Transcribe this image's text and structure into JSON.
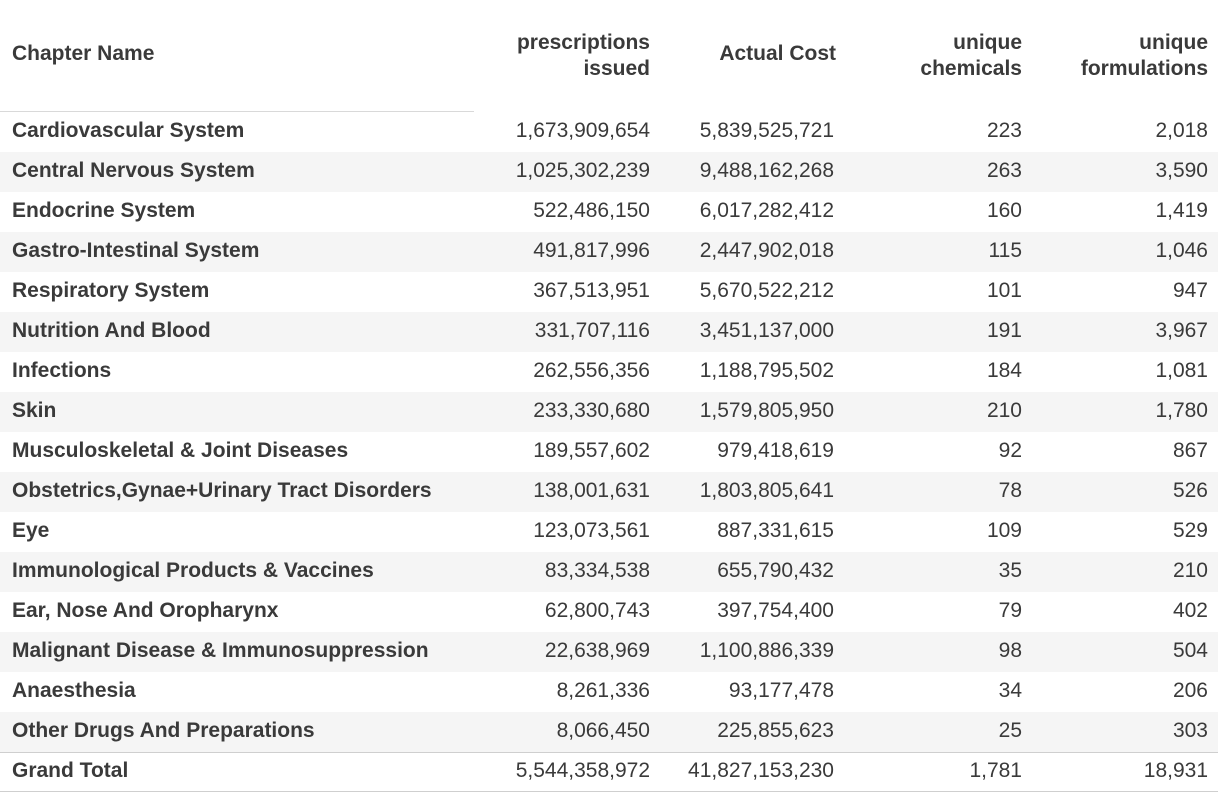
{
  "headers": {
    "chapter_name": "Chapter Name",
    "prescriptions_line1": "prescriptions",
    "prescriptions_line2": "issued",
    "actual_cost": "Actual Cost",
    "chemicals_line1": "unique",
    "chemicals_line2": "chemicals",
    "formulations_line1": "unique",
    "formulations_line2": "formulations"
  },
  "rows": [
    {
      "name": "Cardiovascular System",
      "prescriptions": "1,673,909,654",
      "cost": "5,839,525,721",
      "chemicals": "223",
      "formulations": "2,018"
    },
    {
      "name": "Central Nervous System",
      "prescriptions": "1,025,302,239",
      "cost": "9,488,162,268",
      "chemicals": "263",
      "formulations": "3,590"
    },
    {
      "name": "Endocrine System",
      "prescriptions": "522,486,150",
      "cost": "6,017,282,412",
      "chemicals": "160",
      "formulations": "1,419"
    },
    {
      "name": "Gastro-Intestinal System",
      "prescriptions": "491,817,996",
      "cost": "2,447,902,018",
      "chemicals": "115",
      "formulations": "1,046"
    },
    {
      "name": "Respiratory System",
      "prescriptions": "367,513,951",
      "cost": "5,670,522,212",
      "chemicals": "101",
      "formulations": "947"
    },
    {
      "name": "Nutrition And Blood",
      "prescriptions": "331,707,116",
      "cost": "3,451,137,000",
      "chemicals": "191",
      "formulations": "3,967"
    },
    {
      "name": "Infections",
      "prescriptions": "262,556,356",
      "cost": "1,188,795,502",
      "chemicals": "184",
      "formulations": "1,081"
    },
    {
      "name": "Skin",
      "prescriptions": "233,330,680",
      "cost": "1,579,805,950",
      "chemicals": "210",
      "formulations": "1,780"
    },
    {
      "name": "Musculoskeletal & Joint Diseases",
      "prescriptions": "189,557,602",
      "cost": "979,418,619",
      "chemicals": "92",
      "formulations": "867"
    },
    {
      "name": "Obstetrics,Gynae+Urinary Tract Disorders",
      "prescriptions": "138,001,631",
      "cost": "1,803,805,641",
      "chemicals": "78",
      "formulations": "526"
    },
    {
      "name": "Eye",
      "prescriptions": "123,073,561",
      "cost": "887,331,615",
      "chemicals": "109",
      "formulations": "529"
    },
    {
      "name": "Immunological Products & Vaccines",
      "prescriptions": "83,334,538",
      "cost": "655,790,432",
      "chemicals": "35",
      "formulations": "210"
    },
    {
      "name": "Ear, Nose And Oropharynx",
      "prescriptions": "62,800,743",
      "cost": "397,754,400",
      "chemicals": "79",
      "formulations": "402"
    },
    {
      "name": "Malignant Disease & Immunosuppression",
      "prescriptions": "22,638,969",
      "cost": "1,100,886,339",
      "chemicals": "98",
      "formulations": "504"
    },
    {
      "name": "Anaesthesia",
      "prescriptions": "8,261,336",
      "cost": "93,177,478",
      "chemicals": "34",
      "formulations": "206"
    },
    {
      "name": "Other Drugs And Preparations",
      "prescriptions": "8,066,450",
      "cost": "225,855,623",
      "chemicals": "25",
      "formulations": "303"
    }
  ],
  "total": {
    "name": "Grand Total",
    "prescriptions": "5,544,358,972",
    "cost": "41,827,153,230",
    "chemicals": "1,781",
    "formulations": "18,931"
  }
}
